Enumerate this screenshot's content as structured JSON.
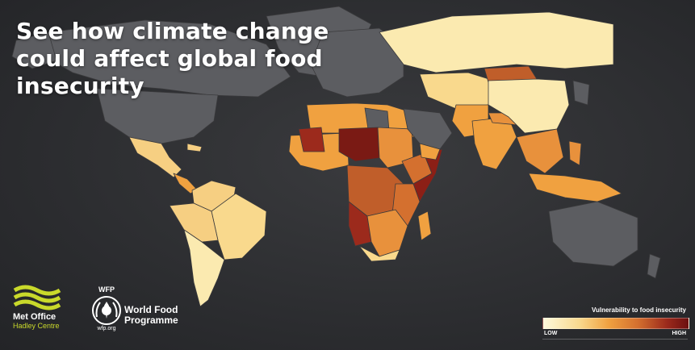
{
  "title": "See how climate change could affect global food insecurity",
  "legend": {
    "title": "Vulnerability to food insecurity",
    "low_label": "LOW",
    "high_label": "HIGH",
    "colors": [
      "#fdf9dc",
      "#f9d98d",
      "#f0a140",
      "#d4702f",
      "#9c2a1c",
      "#6b1010"
    ]
  },
  "logos": {
    "met_office": {
      "name": "Met Office",
      "sub": "Hadley Centre"
    },
    "wfp": {
      "abbr": "WFP",
      "name": "World Food Programme",
      "url": "wfp.org"
    }
  },
  "colors": {
    "no_data": "#5c5d61",
    "background": "#2c2d30",
    "met_green": "#c9d92b"
  }
}
